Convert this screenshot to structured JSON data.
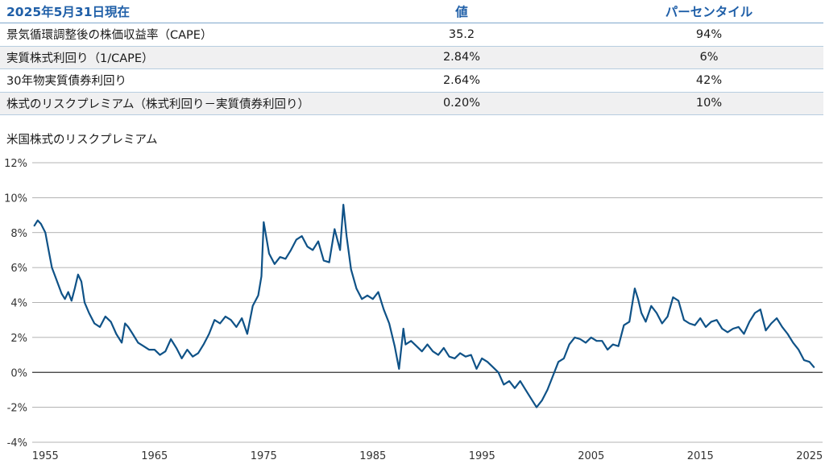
{
  "table": {
    "header": {
      "label": "2025年5月31日現在",
      "value": "値",
      "percentile": "パーセンタイル"
    },
    "rows": [
      {
        "label": "景気循環調整後の株価収益率（CAPE）",
        "value": "35.2",
        "percentile": "94%"
      },
      {
        "label": "実質株式利回り（1/CAPE）",
        "value": "2.84%",
        "percentile": "6%"
      },
      {
        "label": "30年物実質債券利回り",
        "value": "2.64%",
        "percentile": "42%"
      },
      {
        "label": "株式のリスクプレミアム（株式利回り－実質債券利回り）",
        "value": "0.20%",
        "percentile": "10%"
      }
    ]
  },
  "colors": {
    "header_text": "#1f5fa8",
    "line": "#0f5287",
    "grid": "#9a9a9a",
    "zero_line": "#333333"
  },
  "chart_data": {
    "type": "line",
    "title": "米国株式のリスクプレミアム",
    "xlabel": "",
    "ylabel": "",
    "xlim": [
      1953.8,
      2026.2
    ],
    "ylim": [
      -4,
      12
    ],
    "yticks": [
      -4,
      -2,
      0,
      2,
      4,
      6,
      8,
      10,
      12
    ],
    "ytick_labels": [
      "-4%",
      "-2%",
      "0%",
      "2%",
      "4%",
      "6%",
      "8%",
      "10%",
      "12%"
    ],
    "xticks": [
      1955,
      1965,
      1975,
      1985,
      1995,
      2005,
      2015,
      2025
    ],
    "xtick_labels": [
      "1955",
      "1965",
      "1975",
      "1985",
      "1995",
      "2005",
      "2015",
      "2025"
    ],
    "grid": true,
    "series": [
      {
        "x": [
          1954.0,
          1954.3,
          1954.6,
          1955.0,
          1955.3,
          1955.6,
          1955.9,
          1956.2,
          1956.5,
          1956.8,
          1957.1,
          1957.4,
          1957.7,
          1958.0,
          1958.3,
          1958.6,
          1959.0,
          1959.5,
          1960.0,
          1960.5,
          1961.0,
          1961.5,
          1962.0,
          1962.3,
          1962.6,
          1963.0,
          1963.5,
          1964.0,
          1964.5,
          1965.0,
          1965.5,
          1966.0,
          1966.5,
          1967.0,
          1967.5,
          1968.0,
          1968.5,
          1969.0,
          1969.5,
          1970.0,
          1970.5,
          1971.0,
          1971.5,
          1972.0,
          1972.5,
          1973.0,
          1973.5,
          1974.0,
          1974.5,
          1974.8,
          1975.0,
          1975.5,
          1976.0,
          1976.5,
          1977.0,
          1977.5,
          1978.0,
          1978.5,
          1979.0,
          1979.5,
          1980.0,
          1980.5,
          1981.0,
          1981.5,
          1982.0,
          1982.3,
          1982.6,
          1983.0,
          1983.5,
          1984.0,
          1984.5,
          1985.0,
          1985.5,
          1986.0,
          1986.5,
          1987.0,
          1987.4,
          1987.8,
          1988.0,
          1988.5,
          1989.0,
          1989.5,
          1990.0,
          1990.5,
          1991.0,
          1991.5,
          1992.0,
          1992.5,
          1993.0,
          1993.5,
          1994.0,
          1994.5,
          1995.0,
          1995.5,
          1996.0,
          1996.5,
          1997.0,
          1997.5,
          1998.0,
          1998.5,
          1999.0,
          1999.5,
          2000.0,
          2000.5,
          2001.0,
          2001.5,
          2002.0,
          2002.5,
          2003.0,
          2003.5,
          2004.0,
          2004.5,
          2005.0,
          2005.5,
          2006.0,
          2006.5,
          2007.0,
          2007.5,
          2008.0,
          2008.5,
          2009.0,
          2009.3,
          2009.6,
          2010.0,
          2010.5,
          2011.0,
          2011.5,
          2012.0,
          2012.5,
          2013.0,
          2013.5,
          2014.0,
          2014.5,
          2015.0,
          2015.5,
          2016.0,
          2016.5,
          2017.0,
          2017.5,
          2018.0,
          2018.5,
          2019.0,
          2019.5,
          2020.0,
          2020.5,
          2021.0,
          2021.5,
          2022.0,
          2022.5,
          2023.0,
          2023.5,
          2024.0,
          2024.5,
          2025.0,
          2025.4
        ],
        "y": [
          8.4,
          8.7,
          8.5,
          8.0,
          7.0,
          6.0,
          5.5,
          5.0,
          4.5,
          4.2,
          4.6,
          4.1,
          4.8,
          5.6,
          5.2,
          4.0,
          3.4,
          2.8,
          2.6,
          3.2,
          2.9,
          2.2,
          1.7,
          2.8,
          2.6,
          2.2,
          1.7,
          1.5,
          1.3,
          1.3,
          1.0,
          1.2,
          1.9,
          1.4,
          0.8,
          1.3,
          0.9,
          1.1,
          1.6,
          2.2,
          3.0,
          2.8,
          3.2,
          3.0,
          2.6,
          3.1,
          2.2,
          3.8,
          4.4,
          5.5,
          8.6,
          6.8,
          6.2,
          6.6,
          6.5,
          7.0,
          7.6,
          7.8,
          7.2,
          7.0,
          7.5,
          6.4,
          6.3,
          8.2,
          7.0,
          9.6,
          7.8,
          5.9,
          4.8,
          4.2,
          4.4,
          4.2,
          4.6,
          3.6,
          2.8,
          1.5,
          0.2,
          2.5,
          1.6,
          1.8,
          1.5,
          1.2,
          1.6,
          1.2,
          1.0,
          1.4,
          0.9,
          0.8,
          1.1,
          0.9,
          1.0,
          0.2,
          0.8,
          0.6,
          0.3,
          0.0,
          -0.7,
          -0.5,
          -0.9,
          -0.5,
          -1.0,
          -1.5,
          -2.0,
          -1.6,
          -1.0,
          -0.2,
          0.6,
          0.8,
          1.6,
          2.0,
          1.9,
          1.7,
          2.0,
          1.8,
          1.8,
          1.3,
          1.6,
          1.5,
          2.7,
          2.9,
          4.8,
          4.2,
          3.4,
          2.9,
          3.8,
          3.4,
          2.8,
          3.2,
          4.3,
          4.1,
          3.0,
          2.8,
          2.7,
          3.1,
          2.6,
          2.9,
          3.0,
          2.5,
          2.3,
          2.5,
          2.6,
          2.2,
          2.9,
          3.4,
          3.6,
          2.4,
          2.8,
          3.1,
          2.6,
          2.2,
          1.7,
          1.3,
          0.7,
          0.6,
          0.3
        ]
      }
    ]
  }
}
